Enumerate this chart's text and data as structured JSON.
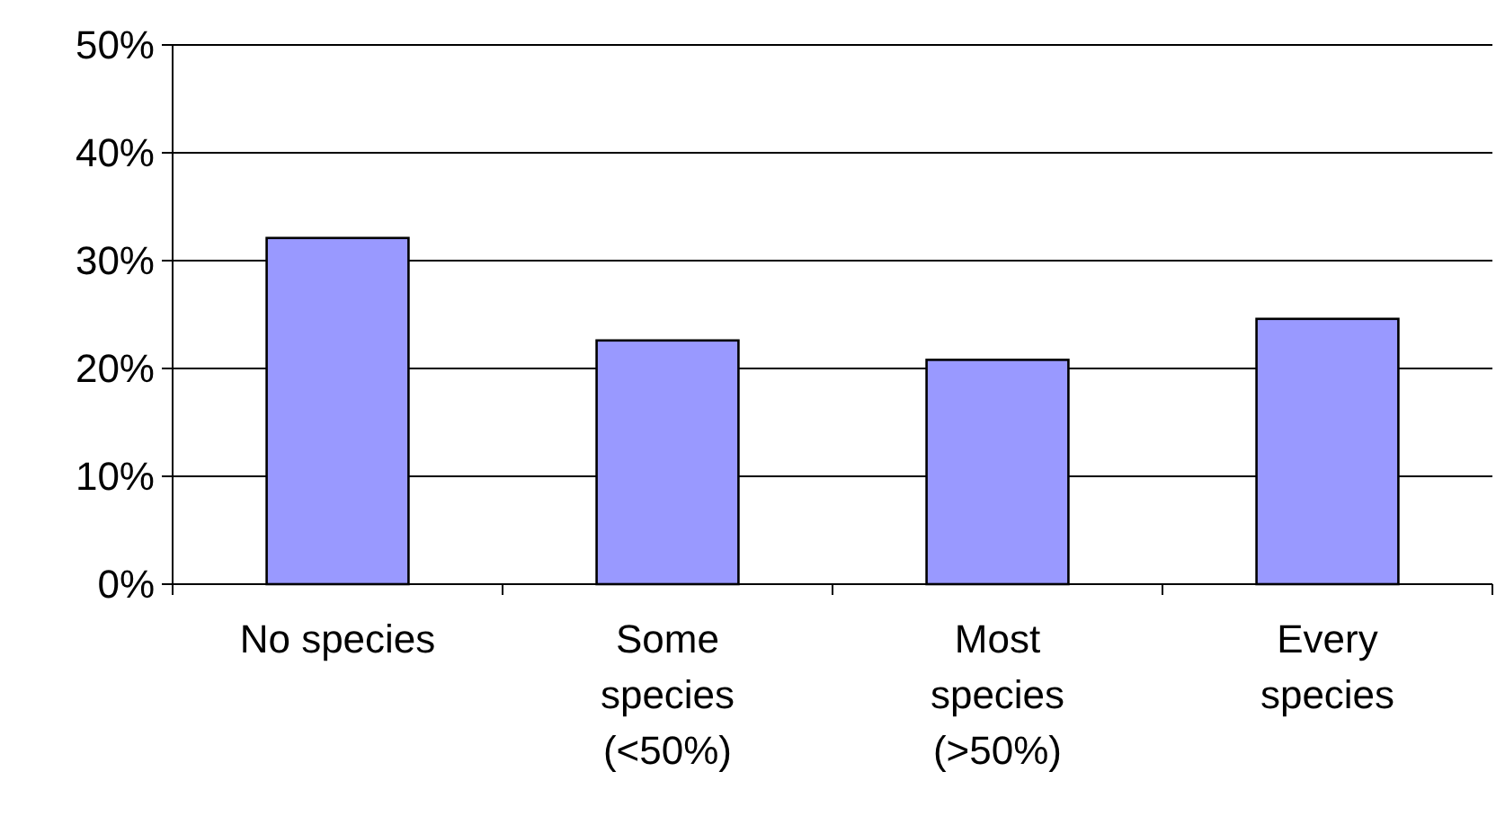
{
  "chart_data": {
    "type": "bar",
    "categories": [
      "No species",
      "Some species (<50%)",
      "Most species (>50%)",
      "Every species"
    ],
    "values": [
      32.1,
      22.6,
      20.8,
      24.6
    ],
    "color": "#9999ff",
    "ylim": [
      0,
      50
    ],
    "yticks": [
      {
        "value": 0,
        "label": "0%"
      },
      {
        "value": 10,
        "label": "10%"
      },
      {
        "value": 20,
        "label": "20%"
      },
      {
        "value": 30,
        "label": "30%"
      },
      {
        "value": 40,
        "label": "40%"
      },
      {
        "value": 50,
        "label": "50%"
      }
    ],
    "grid": "y"
  }
}
